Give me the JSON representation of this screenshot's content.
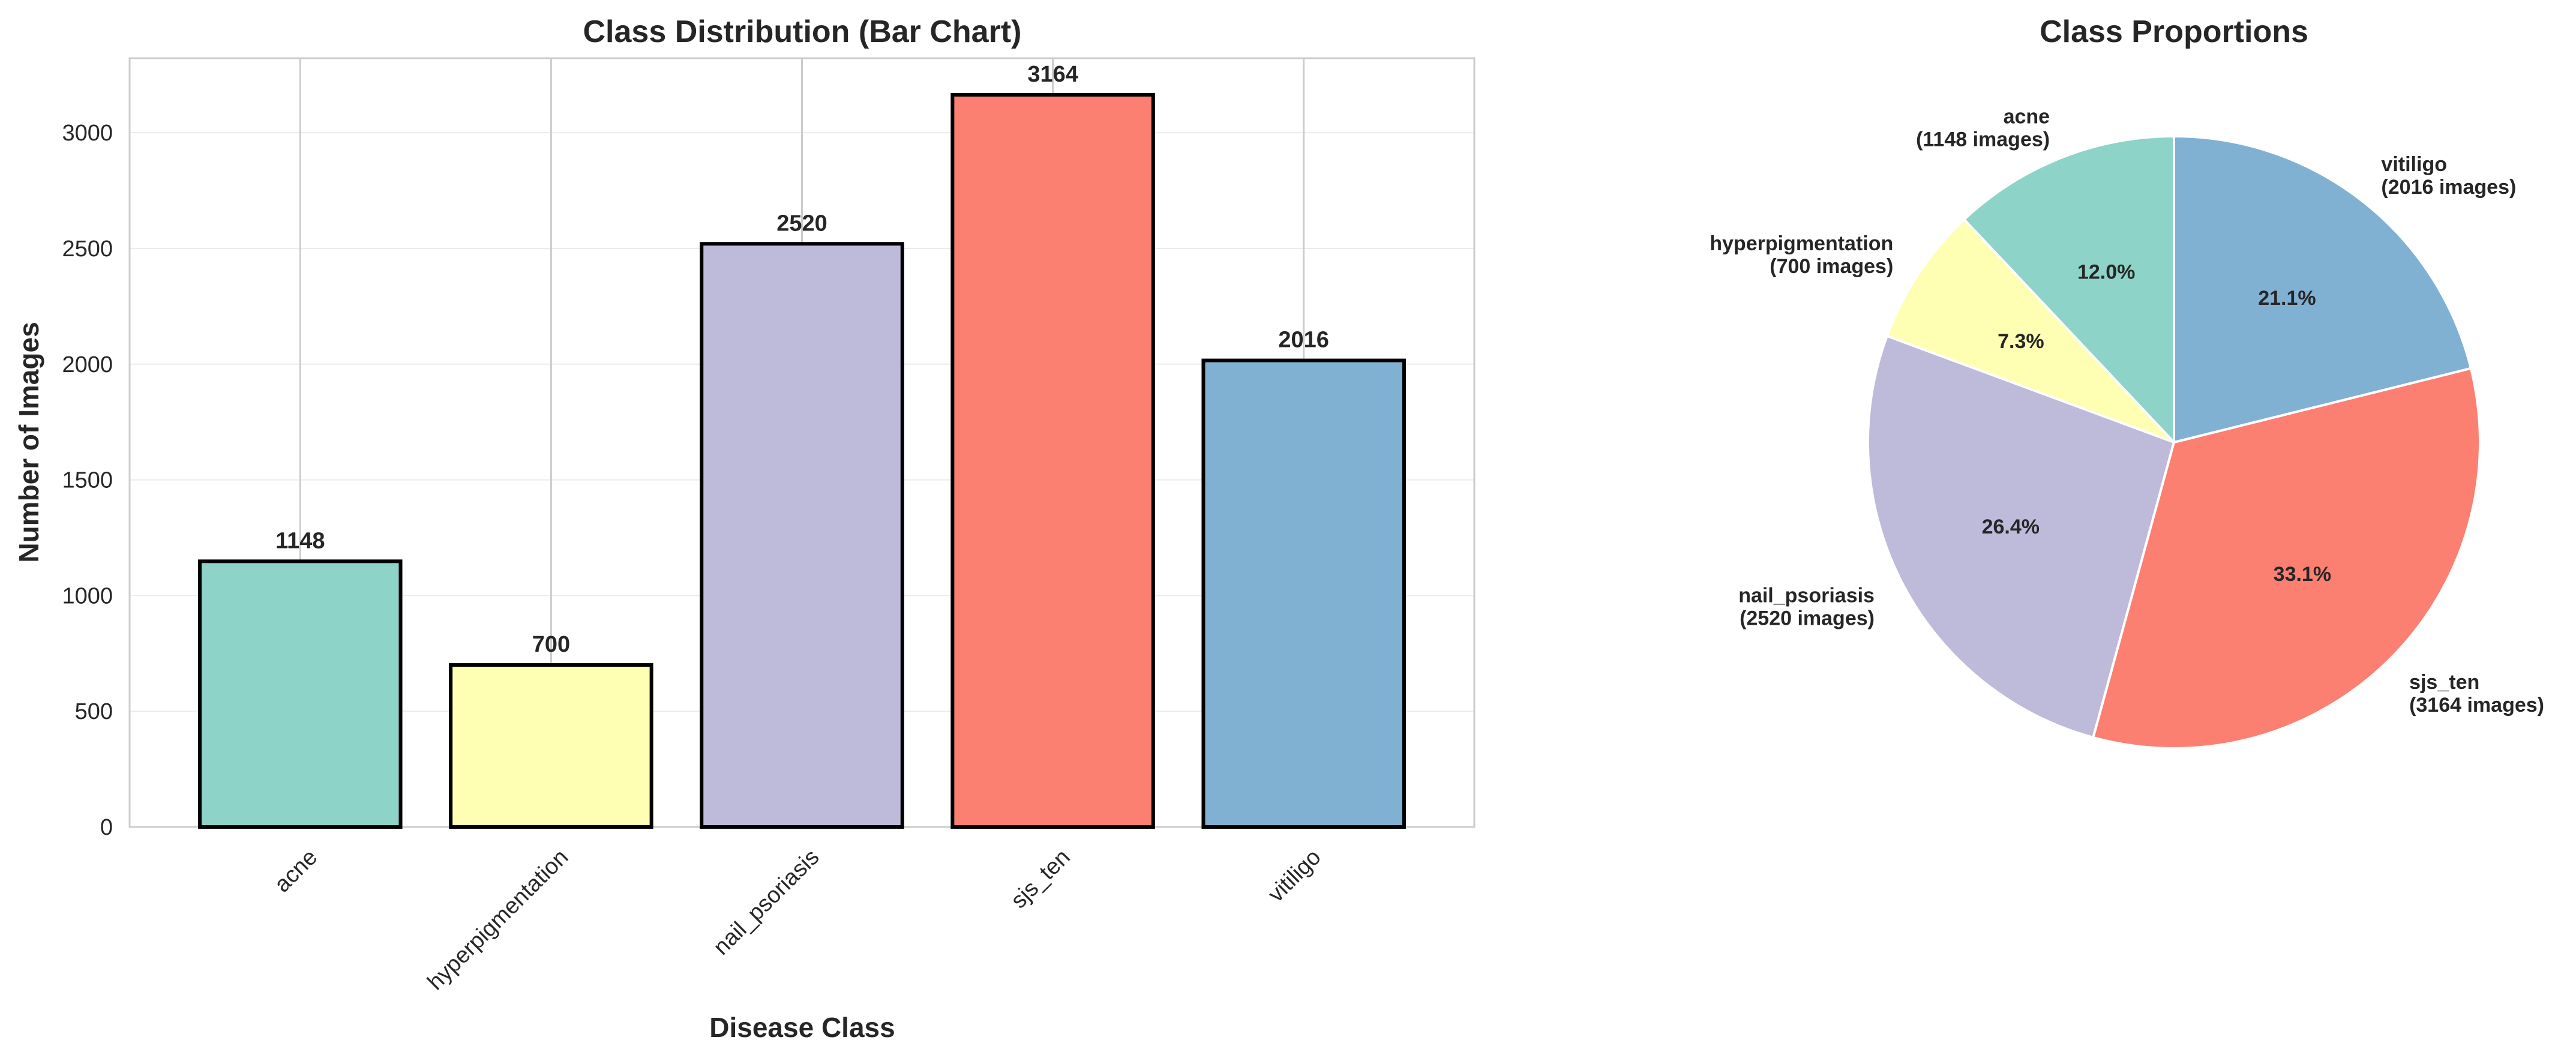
{
  "chart_data": [
    {
      "type": "bar",
      "title": "Class Distribution (Bar Chart)",
      "xlabel": "Disease Class",
      "ylabel": "Number of Images",
      "categories": [
        "acne",
        "hyperpigmentation",
        "nail_psoriasis",
        "sjs_ten",
        "vitiligo"
      ],
      "values": [
        1148,
        700,
        2520,
        3164,
        2016
      ],
      "value_labels": [
        "1148",
        "700",
        "2520",
        "3164",
        "2016"
      ],
      "colors": [
        "#8dd3c7",
        "#ffffb3",
        "#bebada",
        "#fb8072",
        "#80b1d3"
      ],
      "ylim": [
        0,
        3322
      ],
      "yticks": [
        0,
        500,
        1000,
        1500,
        2000,
        2500,
        3000
      ],
      "ytick_labels": [
        "0",
        "500",
        "1000",
        "1500",
        "2000",
        "2500",
        "3000"
      ],
      "grid": true,
      "x_tick_rotation": 45
    },
    {
      "type": "pie",
      "title": "Class Proportions",
      "slices": [
        {
          "label": "acne",
          "sublabel": "(1148 images)",
          "pct_label": "12.0%",
          "value": 1148,
          "color": "#8dd3c7"
        },
        {
          "label": "hyperpigmentation",
          "sublabel": "(700 images)",
          "pct_label": "7.3%",
          "value": 700,
          "color": "#ffffb3"
        },
        {
          "label": "nail_psoriasis",
          "sublabel": "(2520 images)",
          "pct_label": "26.4%",
          "value": 2520,
          "color": "#bebada"
        },
        {
          "label": "sjs_ten",
          "sublabel": "(3164 images)",
          "pct_label": "33.1%",
          "value": 3164,
          "color": "#fb8072"
        },
        {
          "label": "vitiligo",
          "sublabel": "(2016 images)",
          "pct_label": "21.1%",
          "value": 2016,
          "color": "#80b1d3"
        }
      ],
      "start_angle": 90,
      "direction": "counterclockwise"
    }
  ]
}
